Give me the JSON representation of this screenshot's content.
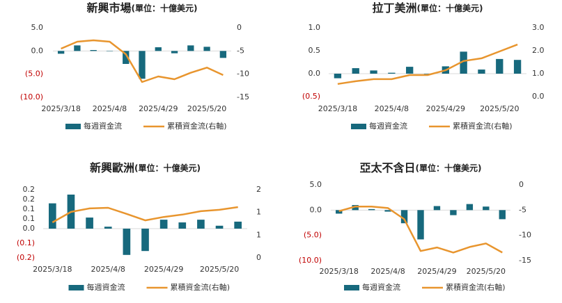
{
  "chart_data": [
    {
      "type": "combo",
      "title": "新興市場",
      "subtitle": "(單位：十億美元)",
      "categories": [
        "2025/3/18",
        null,
        null,
        "2025/4/8",
        null,
        null,
        "2025/4/29",
        null,
        null,
        "2025/5/20",
        null
      ],
      "series": [
        {
          "name": "每週資金流",
          "type": "bar",
          "color": "#17697d",
          "values": [
            -0.6,
            1.2,
            0.2,
            0,
            -2.8,
            -6,
            0.8,
            -0.5,
            1.2,
            0.9,
            -1.5
          ]
        },
        {
          "name": "累積資金流(右軸)",
          "type": "line",
          "axis": "y2",
          "color": "#e8952e",
          "values": [
            -4.5,
            -3,
            -2.7,
            -3,
            -5.7,
            -11.7,
            -10.5,
            -11.1,
            -9.7,
            -8.6,
            -10.2
          ]
        }
      ],
      "ylim": [
        -10,
        5
      ],
      "yticks": [
        {
          "value": 5,
          "label": "5.0"
        },
        {
          "value": 0,
          "label": "0.0"
        },
        {
          "value": -5,
          "label": "(5.0)"
        },
        {
          "value": -10,
          "label": "(10.0)"
        }
      ],
      "y2lim": [
        -15,
        0
      ],
      "y2ticks": [
        0,
        -5,
        -10,
        -15
      ],
      "negative_color": "#c00000",
      "grid": false
    },
    {
      "type": "combo",
      "title": "拉丁美洲",
      "subtitle": "(單位：十億美元)",
      "categories": [
        "2025/3/18",
        null,
        null,
        "2025/4/8",
        null,
        null,
        "2025/4/29",
        null,
        null,
        "2025/5/20",
        null
      ],
      "series": [
        {
          "name": "每週資金流",
          "type": "bar",
          "color": "#17697d",
          "values": [
            -0.1,
            0.12,
            0.07,
            0.02,
            0.15,
            -0.01,
            0.16,
            0.48,
            0.09,
            0.32,
            0.3
          ]
        },
        {
          "name": "累積資金流(右軸)",
          "type": "line",
          "axis": "y2",
          "color": "#e8952e",
          "values": [
            0.55,
            0.67,
            0.76,
            0.76,
            0.94,
            0.94,
            1.15,
            1.55,
            1.67,
            1.97,
            2.27
          ]
        }
      ],
      "ylim": [
        -0.5,
        1
      ],
      "yticks": [
        {
          "value": 1,
          "label": "1.0"
        },
        0.5,
        {
          "value": 0,
          "label": "0.0"
        },
        {
          "value": -0.5,
          "label": "(0.5)"
        }
      ],
      "y2lim": [
        0,
        3
      ],
      "y2ticks": [
        {
          "value": 3,
          "label": "3.0"
        },
        {
          "value": 2,
          "label": "2.0"
        },
        {
          "value": 1,
          "label": "1.0"
        },
        {
          "value": 0,
          "label": "0.0"
        }
      ],
      "negative_color": "#c00000",
      "grid": false
    },
    {
      "type": "combo",
      "title": "新興歐洲",
      "subtitle": "(單位：十億美元)",
      "categories": [
        "2025/3/18",
        null,
        null,
        "2025/4/8",
        null,
        null,
        "2025/4/29",
        null,
        null,
        "2025/5/20",
        null
      ],
      "series": [
        {
          "name": "每週資金流",
          "type": "bar",
          "color": "#17697d",
          "values": [
            0.13,
            0.175,
            0.057,
            0.01,
            -0.135,
            -0.115,
            0.046,
            0.032,
            0.046,
            0.015,
            0.036
          ]
        },
        {
          "name": "累積資金流(右軸)",
          "type": "line",
          "axis": "y2",
          "color": "#e8952e",
          "values": [
            1.04,
            1.35,
            1.45,
            1.47,
            1.29,
            1.1,
            1.2,
            1.27,
            1.37,
            1.41,
            1.49
          ]
        }
      ],
      "ylim": [
        -0.15,
        0.2
      ],
      "yticks": [
        0.2,
        {
          "value": 0.15,
          "label": "0.2"
        },
        0.1,
        {
          "value": 0.05,
          "label": "0.1"
        },
        {
          "value": 0,
          "label": "0.0"
        },
        {
          "value": -0.075,
          "label": "(0.1)"
        },
        {
          "value": -0.15,
          "label": "(0.2)"
        }
      ],
      "y2lim": [
        0,
        2
      ],
      "y2ticks": [
        2,
        {
          "value": 1.333,
          "label": "1"
        },
        {
          "value": 0.667,
          "label": "1"
        },
        0
      ],
      "negative_color": "#c00000",
      "grid": false
    },
    {
      "type": "combo",
      "title": "亞太不含日",
      "subtitle": "(單位：十億美元)",
      "categories": [
        "2025/3/18",
        null,
        null,
        "2025/4/8",
        null,
        null,
        "2025/4/29",
        null,
        null,
        "2025/5/20",
        null
      ],
      "series": [
        {
          "name": "每週資金流",
          "type": "bar",
          "color": "#17697d",
          "values": [
            -0.7,
            1.0,
            0.2,
            -0.3,
            -2.6,
            -5.8,
            0.8,
            -1.0,
            1.2,
            0.7,
            -1.8
          ]
        },
        {
          "name": "累積資金流(右軸)",
          "type": "line",
          "axis": "y2",
          "color": "#e8952e",
          "values": [
            -5.2,
            -4.3,
            -4.3,
            -4.6,
            -6.8,
            -13.1,
            -12.4,
            -13.4,
            -12.3,
            -11.6,
            -13.4
          ]
        }
      ],
      "ylim": [
        -10,
        5
      ],
      "yticks": [
        {
          "value": 5,
          "label": "5.0"
        },
        {
          "value": 0,
          "label": "0.0"
        },
        {
          "value": -5,
          "label": "(5.0)"
        },
        {
          "value": -10,
          "label": "(10.0)"
        }
      ],
      "y2lim": [
        -15,
        0
      ],
      "y2ticks": [
        0,
        -5,
        -10,
        -15
      ],
      "negative_color": "#c00000",
      "grid": false
    }
  ]
}
